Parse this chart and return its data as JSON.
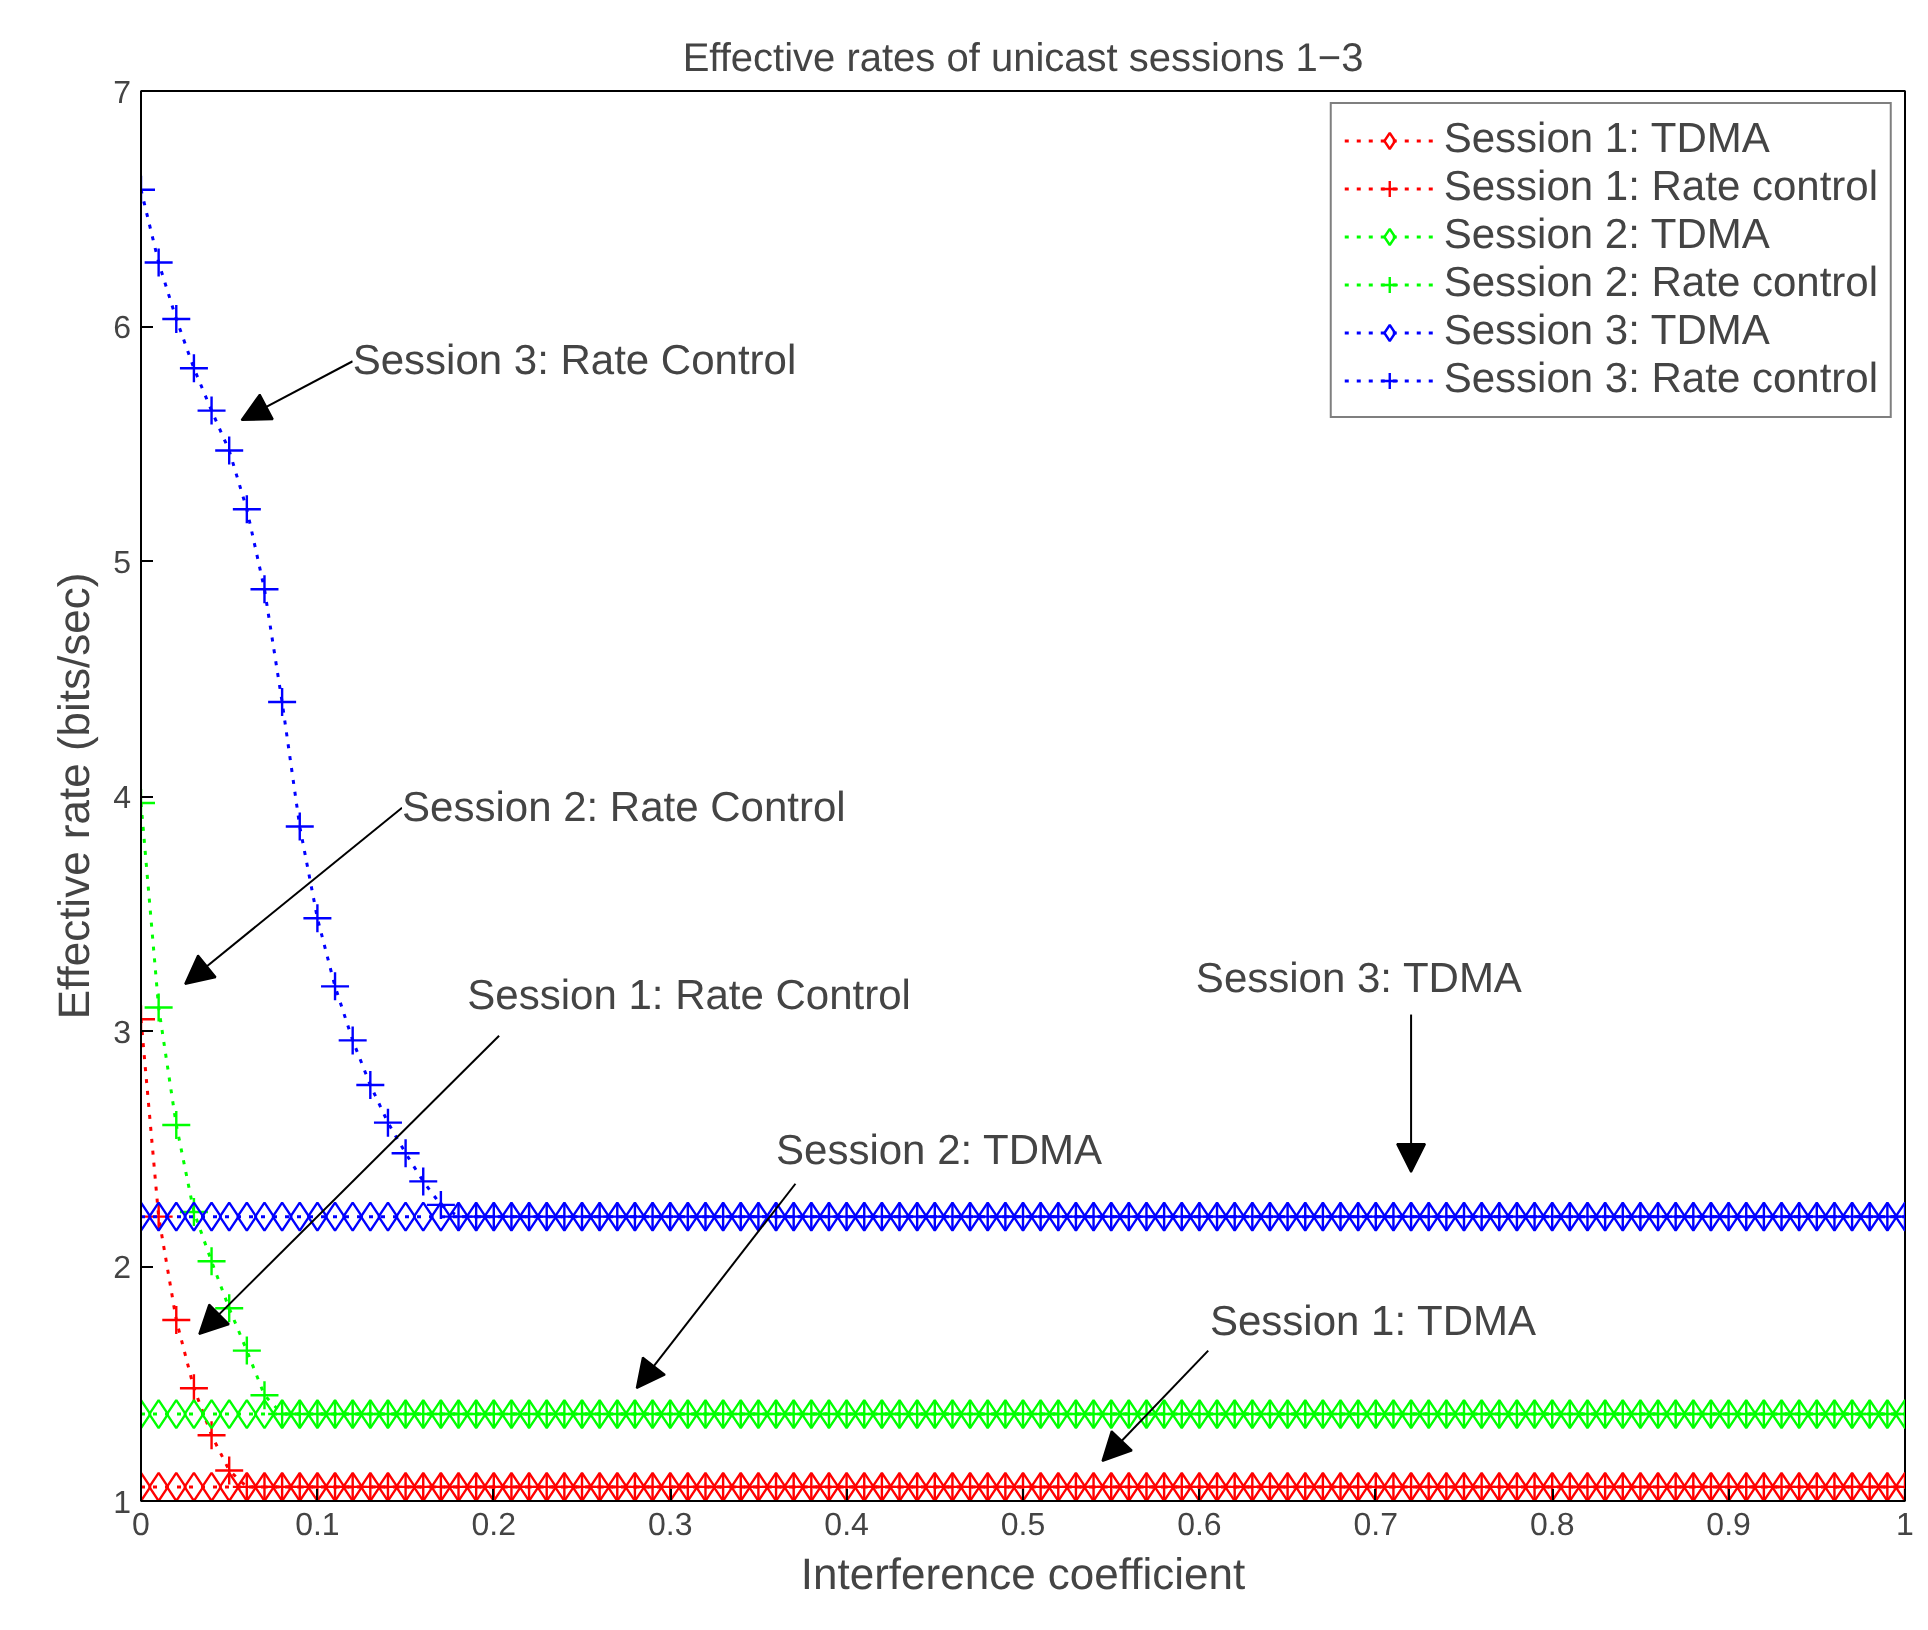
{
  "chart_data": {
    "type": "line",
    "title": "Effective rates of unicast sessions 1−3",
    "xlabel": "Interference coefficient",
    "ylabel": "Effective rate (bits/sec)",
    "x": [
      0,
      0.01,
      0.02,
      0.03,
      0.04,
      0.05,
      0.06,
      0.07,
      0.08,
      0.09,
      0.1,
      0.11,
      0.12,
      0.13,
      0.14,
      0.15,
      0.16,
      0.17,
      0.18,
      0.19,
      0.2,
      0.21,
      0.22,
      0.23,
      0.24,
      0.25,
      0.26,
      0.27,
      0.28,
      0.29,
      0.3,
      0.31,
      0.32,
      0.33,
      0.34,
      0.35,
      0.36,
      0.37,
      0.38,
      0.39,
      0.4,
      0.41,
      0.42,
      0.43,
      0.44,
      0.45,
      0.46,
      0.47,
      0.48,
      0.49,
      0.5,
      0.51,
      0.52,
      0.53,
      0.54,
      0.55,
      0.56,
      0.57,
      0.58,
      0.59,
      0.6,
      0.61,
      0.62,
      0.63,
      0.64,
      0.65,
      0.66,
      0.67,
      0.68,
      0.69,
      0.7,
      0.71,
      0.72,
      0.73,
      0.74,
      0.75,
      0.76,
      0.77,
      0.78,
      0.79,
      0.8,
      0.81,
      0.82,
      0.83,
      0.84,
      0.85,
      0.86,
      0.87,
      0.88,
      0.89,
      0.9,
      0.91,
      0.92,
      0.93,
      0.94,
      0.95,
      0.96,
      0.97,
      0.98,
      0.99,
      1
    ],
    "series": [
      {
        "name": "Session 1: TDMA",
        "color": "#ff0000",
        "marker": "diamond",
        "line_style": "dotted",
        "values": [
          1.06,
          1.06,
          1.06,
          1.06,
          1.06,
          1.06,
          1.06,
          1.06,
          1.06,
          1.06,
          1.06,
          1.06,
          1.06,
          1.06,
          1.06,
          1.06,
          1.06,
          1.06,
          1.06,
          1.06,
          1.06,
          1.06,
          1.06,
          1.06,
          1.06,
          1.06,
          1.06,
          1.06,
          1.06,
          1.06,
          1.06,
          1.06,
          1.06,
          1.06,
          1.06,
          1.06,
          1.06,
          1.06,
          1.06,
          1.06,
          1.06,
          1.06,
          1.06,
          1.06,
          1.06,
          1.06,
          1.06,
          1.06,
          1.06,
          1.06,
          1.06,
          1.06,
          1.06,
          1.06,
          1.06,
          1.06,
          1.06,
          1.06,
          1.06,
          1.06,
          1.06,
          1.06,
          1.06,
          1.06,
          1.06,
          1.06,
          1.06,
          1.06,
          1.06,
          1.06,
          1.06,
          1.06,
          1.06,
          1.06,
          1.06,
          1.06,
          1.06,
          1.06,
          1.06,
          1.06,
          1.06,
          1.06,
          1.06,
          1.06,
          1.06,
          1.06,
          1.06,
          1.06,
          1.06,
          1.06,
          1.06,
          1.06,
          1.06,
          1.06,
          1.06,
          1.06,
          1.06,
          1.06,
          1.06,
          1.06,
          1.06
        ]
      },
      {
        "name": "Session 1: Rate control",
        "color": "#ff0000",
        "marker": "cross",
        "line_style": "dotted",
        "values": [
          3.05,
          2.21,
          1.77,
          1.48,
          1.28,
          1.13,
          1.06,
          1.06,
          1.06,
          1.06,
          1.06,
          1.06,
          1.06,
          1.06,
          1.06,
          1.06,
          1.06,
          1.06,
          1.06,
          1.06,
          1.06,
          1.06,
          1.06,
          1.06,
          1.06,
          1.06,
          1.06,
          1.06,
          1.06,
          1.06,
          1.06,
          1.06,
          1.06,
          1.06,
          1.06,
          1.06,
          1.06,
          1.06,
          1.06,
          1.06,
          1.06,
          1.06,
          1.06,
          1.06,
          1.06,
          1.06,
          1.06,
          1.06,
          1.06,
          1.06,
          1.06,
          1.06,
          1.06,
          1.06,
          1.06,
          1.06,
          1.06,
          1.06,
          1.06,
          1.06,
          1.06,
          1.06,
          1.06,
          1.06,
          1.06,
          1.06,
          1.06,
          1.06,
          1.06,
          1.06,
          1.06,
          1.06,
          1.06,
          1.06,
          1.06,
          1.06,
          1.06,
          1.06,
          1.06,
          1.06,
          1.06,
          1.06,
          1.06,
          1.06,
          1.06,
          1.06,
          1.06,
          1.06,
          1.06,
          1.06,
          1.06,
          1.06,
          1.06,
          1.06,
          1.06,
          1.06,
          1.06,
          1.06,
          1.06,
          1.06,
          1.06
        ]
      },
      {
        "name": "Session 2: TDMA",
        "color": "#00ff00",
        "marker": "diamond",
        "line_style": "dotted",
        "values": [
          1.37,
          1.37,
          1.37,
          1.37,
          1.37,
          1.37,
          1.37,
          1.37,
          1.37,
          1.37,
          1.37,
          1.37,
          1.37,
          1.37,
          1.37,
          1.37,
          1.37,
          1.37,
          1.37,
          1.37,
          1.37,
          1.37,
          1.37,
          1.37,
          1.37,
          1.37,
          1.37,
          1.37,
          1.37,
          1.37,
          1.37,
          1.37,
          1.37,
          1.37,
          1.37,
          1.37,
          1.37,
          1.37,
          1.37,
          1.37,
          1.37,
          1.37,
          1.37,
          1.37,
          1.37,
          1.37,
          1.37,
          1.37,
          1.37,
          1.37,
          1.37,
          1.37,
          1.37,
          1.37,
          1.37,
          1.37,
          1.37,
          1.37,
          1.37,
          1.37,
          1.37,
          1.37,
          1.37,
          1.37,
          1.37,
          1.37,
          1.37,
          1.37,
          1.37,
          1.37,
          1.37,
          1.37,
          1.37,
          1.37,
          1.37,
          1.37,
          1.37,
          1.37,
          1.37,
          1.37,
          1.37,
          1.37,
          1.37,
          1.37,
          1.37,
          1.37,
          1.37,
          1.37,
          1.37,
          1.37,
          1.37,
          1.37,
          1.37,
          1.37,
          1.37,
          1.37,
          1.37,
          1.37,
          1.37,
          1.37,
          1.37
        ]
      },
      {
        "name": "Session 2: Rate control",
        "color": "#00ff00",
        "marker": "cross",
        "line_style": "dotted",
        "values": [
          3.97,
          3.1,
          2.6,
          2.23,
          2.02,
          1.82,
          1.64,
          1.45,
          1.37,
          1.37,
          1.37,
          1.37,
          1.37,
          1.37,
          1.37,
          1.37,
          1.37,
          1.37,
          1.37,
          1.37,
          1.37,
          1.37,
          1.37,
          1.37,
          1.37,
          1.37,
          1.37,
          1.37,
          1.37,
          1.37,
          1.37,
          1.37,
          1.37,
          1.37,
          1.37,
          1.37,
          1.37,
          1.37,
          1.37,
          1.37,
          1.37,
          1.37,
          1.37,
          1.37,
          1.37,
          1.37,
          1.37,
          1.37,
          1.37,
          1.37,
          1.37,
          1.37,
          1.37,
          1.37,
          1.37,
          1.37,
          1.37,
          1.37,
          1.37,
          1.37,
          1.37,
          1.37,
          1.37,
          1.37,
          1.37,
          1.37,
          1.37,
          1.37,
          1.37,
          1.37,
          1.37,
          1.37,
          1.37,
          1.37,
          1.37,
          1.37,
          1.37,
          1.37,
          1.37,
          1.37,
          1.37,
          1.37,
          1.37,
          1.37,
          1.37,
          1.37,
          1.37,
          1.37,
          1.37,
          1.37,
          1.37,
          1.37,
          1.37,
          1.37,
          1.37,
          1.37,
          1.37,
          1.37,
          1.37,
          1.37,
          1.37
        ]
      },
      {
        "name": "Session 3: TDMA",
        "color": "#0000ff",
        "marker": "diamond",
        "line_style": "dotted",
        "values": [
          2.21,
          2.21,
          2.21,
          2.21,
          2.21,
          2.21,
          2.21,
          2.21,
          2.21,
          2.21,
          2.21,
          2.21,
          2.21,
          2.21,
          2.21,
          2.21,
          2.21,
          2.21,
          2.21,
          2.21,
          2.21,
          2.21,
          2.21,
          2.21,
          2.21,
          2.21,
          2.21,
          2.21,
          2.21,
          2.21,
          2.21,
          2.21,
          2.21,
          2.21,
          2.21,
          2.21,
          2.21,
          2.21,
          2.21,
          2.21,
          2.21,
          2.21,
          2.21,
          2.21,
          2.21,
          2.21,
          2.21,
          2.21,
          2.21,
          2.21,
          2.21,
          2.21,
          2.21,
          2.21,
          2.21,
          2.21,
          2.21,
          2.21,
          2.21,
          2.21,
          2.21,
          2.21,
          2.21,
          2.21,
          2.21,
          2.21,
          2.21,
          2.21,
          2.21,
          2.21,
          2.21,
          2.21,
          2.21,
          2.21,
          2.21,
          2.21,
          2.21,
          2.21,
          2.21,
          2.21,
          2.21,
          2.21,
          2.21,
          2.21,
          2.21,
          2.21,
          2.21,
          2.21,
          2.21,
          2.21,
          2.21,
          2.21,
          2.21,
          2.21,
          2.21,
          2.21,
          2.21,
          2.21,
          2.21,
          2.21,
          2.21
        ]
      },
      {
        "name": "Session 3: Rate control",
        "color": "#0000ff",
        "marker": "cross",
        "line_style": "dotted",
        "values": [
          6.58,
          6.27,
          6.03,
          5.82,
          5.64,
          5.47,
          5.22,
          4.88,
          4.4,
          3.87,
          3.48,
          3.19,
          2.96,
          2.77,
          2.61,
          2.48,
          2.36,
          2.26,
          2.21,
          2.21,
          2.21,
          2.21,
          2.21,
          2.21,
          2.21,
          2.21,
          2.21,
          2.21,
          2.21,
          2.21,
          2.21,
          2.21,
          2.21,
          2.21,
          2.21,
          2.21,
          2.21,
          2.21,
          2.21,
          2.21,
          2.21,
          2.21,
          2.21,
          2.21,
          2.21,
          2.21,
          2.21,
          2.21,
          2.21,
          2.21,
          2.21,
          2.21,
          2.21,
          2.21,
          2.21,
          2.21,
          2.21,
          2.21,
          2.21,
          2.21,
          2.21,
          2.21,
          2.21,
          2.21,
          2.21,
          2.21,
          2.21,
          2.21,
          2.21,
          2.21,
          2.21,
          2.21,
          2.21,
          2.21,
          2.21,
          2.21,
          2.21,
          2.21,
          2.21,
          2.21,
          2.21,
          2.21,
          2.21,
          2.21,
          2.21,
          2.21,
          2.21,
          2.21,
          2.21,
          2.21,
          2.21,
          2.21,
          2.21,
          2.21,
          2.21,
          2.21,
          2.21,
          2.21,
          2.21,
          2.21,
          2.21
        ]
      }
    ],
    "annotations": [
      "Session 3: Rate Control",
      "Session 2: Rate Control",
      "Session 1: Rate Control",
      "Session 2: TDMA",
      "Session 3: TDMA",
      "Session 1: TDMA"
    ],
    "xlim": [
      0,
      1
    ],
    "ylim": [
      1,
      7
    ],
    "xticks": [
      0,
      0.1,
      0.2,
      0.3,
      0.4,
      0.5,
      0.6,
      0.7,
      0.8,
      0.9,
      1
    ],
    "yticks": [
      1,
      2,
      3,
      4,
      5,
      6,
      7
    ],
    "grid": false,
    "legend": "top right"
  }
}
